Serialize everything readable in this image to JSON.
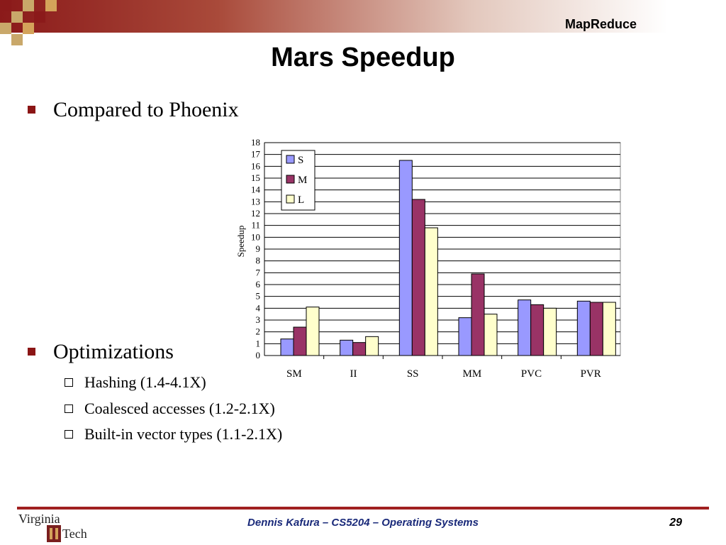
{
  "header": {
    "label": "MapReduce"
  },
  "slide": {
    "title": "Mars Speedup"
  },
  "bullets": [
    {
      "text": "Compared to Phoenix"
    },
    {
      "text": "Optimizations"
    }
  ],
  "sub_bullets": [
    {
      "text": "Hashing (1.4-4.1X)"
    },
    {
      "text": "Coalesced accesses (1.2-2.1X)"
    },
    {
      "text": "Built-in vector types (1.1-2.1X)"
    }
  ],
  "chart_data": {
    "type": "bar",
    "ylabel": "Speedup",
    "ylim": [
      0,
      18
    ],
    "yticks": [
      "0",
      "1",
      "2",
      "3",
      "4",
      "5",
      "6",
      "7",
      "8",
      "9",
      "10",
      "11",
      "12",
      "13",
      "14",
      "15",
      "16",
      "17",
      "18"
    ],
    "categories": [
      "SM",
      "II",
      "SS",
      "MM",
      "PVC",
      "PVR"
    ],
    "series": [
      {
        "name": "S",
        "color": "#9999ff",
        "values": [
          1.4,
          1.3,
          16.5,
          3.2,
          4.7,
          4.6
        ]
      },
      {
        "name": "M",
        "color": "#993366",
        "values": [
          2.4,
          1.1,
          13.2,
          6.9,
          4.3,
          4.5
        ]
      },
      {
        "name": "L",
        "color": "#ffffcc",
        "values": [
          4.1,
          1.6,
          10.8,
          3.5,
          4.0,
          4.5
        ]
      }
    ],
    "grid": true,
    "legend_position": "top-left"
  },
  "footer": {
    "text": "Dennis Kafura – CS5204 – Operating Systems",
    "page": "29"
  },
  "logo": {
    "line1": "Virginia",
    "line2": "Tech"
  }
}
